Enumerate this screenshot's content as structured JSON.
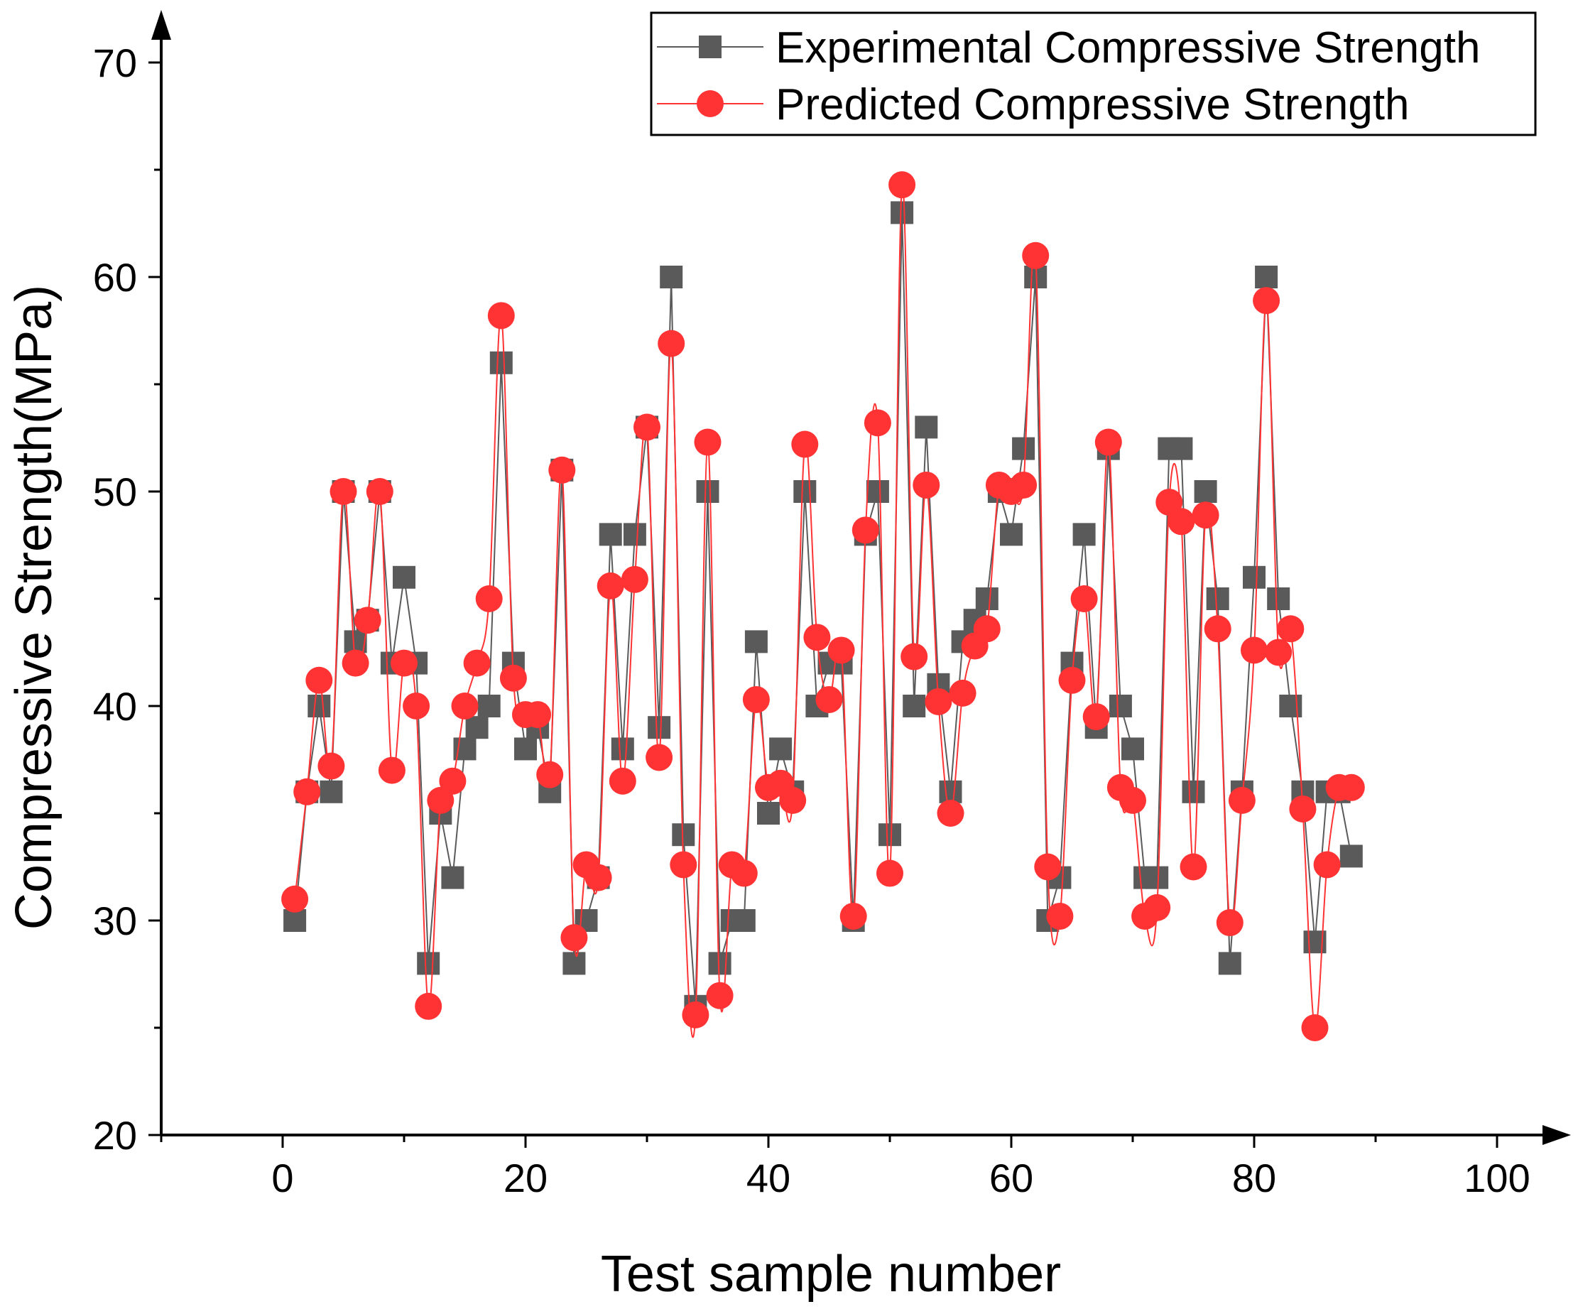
{
  "chart_data": {
    "type": "line",
    "xlabel": "Test sample number",
    "ylabel": "Compressive Strength(MPa)",
    "xlim": [
      -10,
      100
    ],
    "ylim": [
      20,
      70
    ],
    "x_ticks": [
      0,
      20,
      40,
      60,
      80,
      100
    ],
    "y_ticks": [
      20,
      30,
      40,
      50,
      60,
      70
    ],
    "legend_position": "top-right",
    "series": [
      {
        "name": "Experimental Compressive Strength",
        "color": "#5a5a5a",
        "marker": "square",
        "x": [
          1,
          2,
          3,
          4,
          5,
          6,
          7,
          8,
          9,
          10,
          11,
          12,
          13,
          14,
          15,
          16,
          17,
          18,
          19,
          20,
          21,
          22,
          23,
          24,
          25,
          26,
          27,
          28,
          29,
          30,
          31,
          32,
          33,
          34,
          35,
          36,
          37,
          38,
          39,
          40,
          41,
          42,
          43,
          44,
          45,
          46,
          47,
          48,
          49,
          50,
          51,
          52,
          53,
          54,
          55,
          56,
          57,
          58,
          59,
          60,
          61,
          62,
          63,
          64,
          65,
          66,
          67,
          68,
          69,
          70,
          71,
          72,
          73,
          74,
          75,
          76,
          77,
          78,
          79,
          80,
          81,
          82,
          83,
          84,
          85,
          86,
          87,
          88
        ],
        "values": [
          30,
          36,
          40,
          36,
          50,
          43,
          44,
          50,
          42,
          46,
          42,
          28,
          35,
          32,
          38,
          39,
          40,
          56,
          42,
          38,
          39,
          36,
          51,
          28,
          30,
          32,
          48,
          38,
          48,
          53,
          39,
          60,
          34,
          26,
          50,
          28,
          30,
          30,
          43,
          35,
          38,
          36,
          50,
          40,
          42,
          42,
          30,
          48,
          50,
          34,
          63,
          40,
          53,
          41,
          36,
          43,
          44,
          45,
          50,
          48,
          52,
          60,
          30,
          32,
          42,
          48,
          39,
          52,
          40,
          38,
          32,
          32,
          52,
          52,
          36,
          50,
          45,
          28,
          36,
          46,
          60,
          45,
          40,
          36,
          29,
          36,
          36,
          33
        ]
      },
      {
        "name": "Predicted Compressive Strength",
        "color": "#ff3333",
        "marker": "circle",
        "x": [
          1,
          2,
          3,
          4,
          5,
          6,
          7,
          8,
          9,
          10,
          11,
          12,
          13,
          14,
          15,
          16,
          17,
          18,
          19,
          20,
          21,
          22,
          23,
          24,
          25,
          26,
          27,
          28,
          29,
          30,
          31,
          32,
          33,
          34,
          35,
          36,
          37,
          38,
          39,
          40,
          41,
          42,
          43,
          44,
          45,
          46,
          47,
          48,
          49,
          50,
          51,
          52,
          53,
          54,
          55,
          56,
          57,
          58,
          59,
          60,
          61,
          62,
          63,
          64,
          65,
          66,
          67,
          68,
          69,
          70,
          71,
          72,
          73,
          74,
          75,
          76,
          77,
          78,
          79,
          80,
          81,
          82,
          83,
          84,
          85,
          86,
          87,
          88
        ],
        "values": [
          31,
          36,
          41.2,
          37.2,
          50,
          42,
          44,
          50,
          37,
          42,
          40,
          26,
          35.6,
          36.5,
          40,
          42,
          45,
          58.2,
          41.3,
          39.6,
          39.6,
          36.8,
          51,
          29.2,
          32.6,
          32,
          45.6,
          36.5,
          45.9,
          53,
          37.6,
          56.9,
          32.6,
          25.6,
          52.3,
          26.5,
          32.6,
          32.2,
          40.3,
          36.2,
          36.4,
          35.6,
          52.2,
          43.2,
          40.3,
          42.6,
          30.2,
          48.2,
          53.2,
          32.2,
          64.3,
          42.3,
          50.3,
          40.2,
          35,
          40.6,
          42.8,
          43.6,
          50.3,
          50,
          50.3,
          61,
          32.5,
          30.2,
          41.2,
          45,
          39.5,
          52.3,
          36.2,
          35.6,
          30.2,
          30.6,
          49.5,
          48.6,
          32.5,
          48.9,
          43.6,
          29.9,
          35.6,
          42.6,
          58.9,
          42.5,
          43.6,
          35.2,
          25,
          32.6,
          36.2,
          36.2
        ]
      }
    ]
  }
}
